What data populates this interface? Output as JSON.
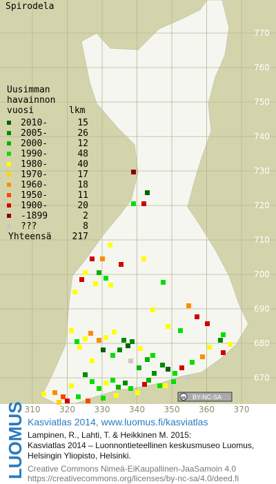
{
  "title": "Spirodela",
  "legend": {
    "heading": [
      "Uusimman",
      "havainnon",
      "vuosi"
    ],
    "count_heading": "lkm",
    "items": [
      {
        "label": "2010-",
        "count": 15,
        "color": "#006400"
      },
      {
        "label": "2005-",
        "count": 26,
        "color": "#008c00"
      },
      {
        "label": "2000-",
        "count": 12,
        "color": "#00b400"
      },
      {
        "label": "1990-",
        "count": 48,
        "color": "#00e000"
      },
      {
        "label": "1980-",
        "count": 40,
        "color": "#ffff00"
      },
      {
        "label": "1970-",
        "count": 17,
        "color": "#ffd200"
      },
      {
        "label": "1960-",
        "count": 18,
        "color": "#ff8c00"
      },
      {
        "label": "1950-",
        "count": 11,
        "color": "#ff4600"
      },
      {
        "label": "1900-",
        "count": 20,
        "color": "#d20000"
      },
      {
        "label": "-1899",
        "count": 2,
        "color": "#8c0000"
      },
      {
        "label": "???",
        "count": 8,
        "color": "#c8c8c8"
      }
    ],
    "total_label": "Yhteensä",
    "total": 217
  },
  "map": {
    "y_labels": [
      770,
      760,
      750,
      740,
      730,
      720,
      710,
      700,
      690,
      680,
      670
    ],
    "x_labels": [
      310,
      320,
      330,
      340,
      350,
      360,
      370
    ],
    "license_badge": "BY-NC-SA"
  },
  "footer": {
    "logo": "LUOMUS",
    "link": "Kasviatlas 2014, www.luomus.fi/kasviatlas",
    "citation": [
      "Lampinen, R., Lahti, T. & Heikkinen M. 2015:",
      "Kasviatlas 2014 – Luonnontieteellinen keskusmuseo Luomus,",
      "Helsingin Yliopisto, Helsinki."
    ],
    "license": [
      "Creative Commons Nimeä-EiKaupallinen-JaaSamoin 4.0",
      "https://creativecommons.org/licenses/by-nc-sa/4.0/deed.fi"
    ]
  }
}
